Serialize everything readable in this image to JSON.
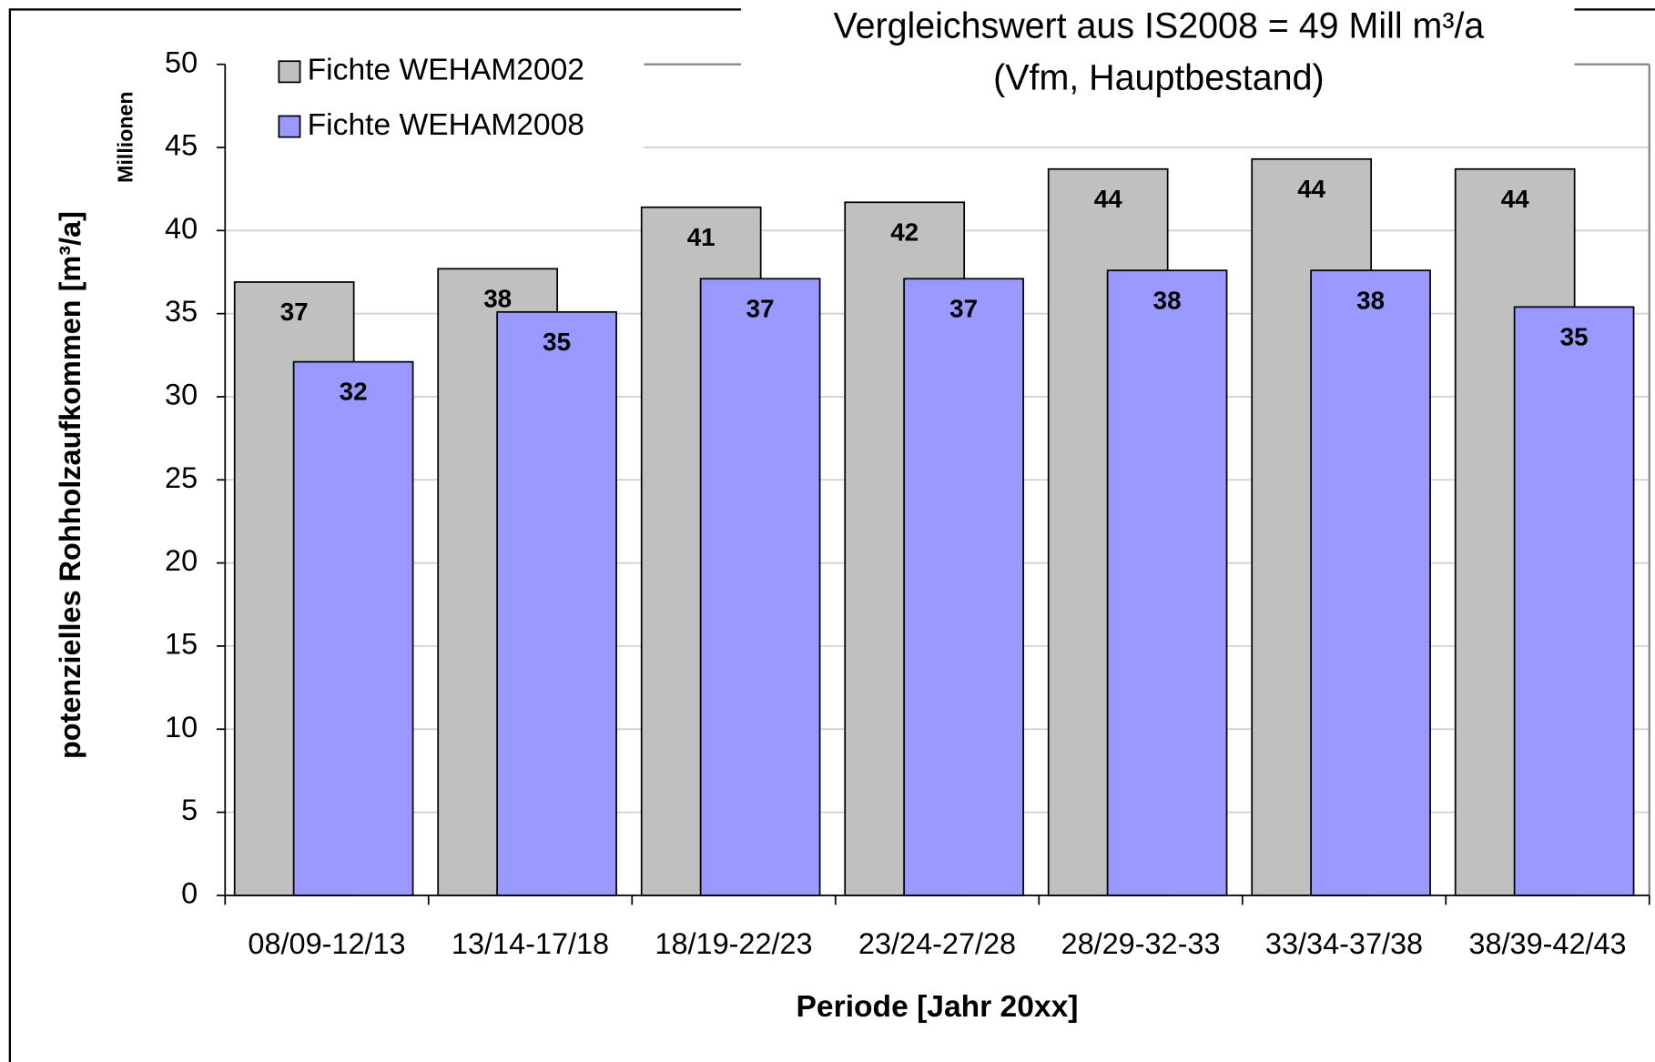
{
  "chart_data": {
    "type": "bar",
    "title": "Vergleichswert aus IS2008 = 49 Mill m³/a",
    "subtitle": "(Vfm, Hauptbestand)",
    "x_label": "Periode [Jahr 20xx]",
    "y_label": "potenzielles Rohholzaufkommen [m³/a]",
    "y_unit": "Millionen",
    "categories": [
      "08/09-12/13",
      "13/14-17/18",
      "18/19-22/23",
      "23/24-27/28",
      "28/29-32-33",
      "33/34-37/38",
      "38/39-42/43"
    ],
    "series": [
      {
        "name": "Fichte WEHAM2002",
        "color": "#c0c0c0",
        "values": [
          36.9,
          37.7,
          41.4,
          41.7,
          43.7,
          44.3,
          43.7
        ],
        "value_labels": [
          "37",
          "38",
          "41",
          "42",
          "44",
          "44",
          "44"
        ]
      },
      {
        "name": "Fichte WEHAM2008",
        "color": "#9999ff",
        "values": [
          32.1,
          35.1,
          37.1,
          37.1,
          37.6,
          37.6,
          35.4
        ],
        "value_labels": [
          "32",
          "35",
          "37",
          "37",
          "38",
          "38",
          "35"
        ]
      }
    ],
    "ylim": [
      0,
      50
    ],
    "yticks": [
      0,
      5,
      10,
      15,
      20,
      25,
      30,
      35,
      40,
      45,
      50
    ],
    "grid": true,
    "legend": "top-left"
  }
}
